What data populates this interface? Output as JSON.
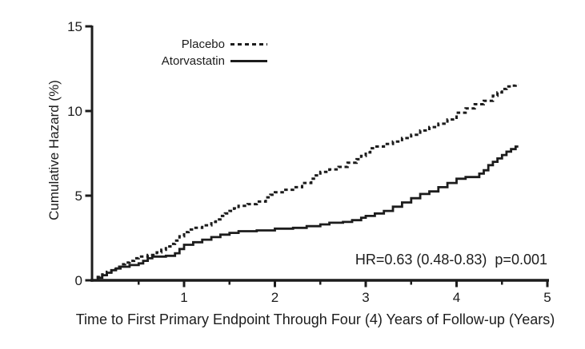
{
  "chart_data": {
    "type": "line",
    "subtype": "step-after",
    "title": "",
    "xlabel": "Time to First Primary Endpoint Through Four (4) Years of Follow-up (Years)",
    "ylabel": "Cumulative Hazard (%)",
    "xlim": [
      0,
      5
    ],
    "ylim": [
      0,
      15
    ],
    "x_ticks": [
      1,
      2,
      3,
      4,
      5
    ],
    "x_minor_ticks": [
      0.5,
      1.5,
      2.5,
      3.5,
      4.5
    ],
    "y_ticks": [
      0,
      5,
      10,
      15
    ],
    "grid": false,
    "legend_position": "top-left-inside",
    "annotation": "HR=0.63 (0.48-0.83)  p=0.001",
    "line_color": "#1c1c1c",
    "background_color": "#ffffff",
    "series": [
      {
        "name": "Placebo",
        "style": "dashed",
        "points": [
          [
            0,
            0
          ],
          [
            0.05,
            0.2
          ],
          [
            0.1,
            0.35
          ],
          [
            0.15,
            0.5
          ],
          [
            0.2,
            0.65
          ],
          [
            0.25,
            0.8
          ],
          [
            0.3,
            0.95
          ],
          [
            0.35,
            1.05
          ],
          [
            0.4,
            1.15
          ],
          [
            0.45,
            1.3
          ],
          [
            0.5,
            1.4
          ],
          [
            0.6,
            1.5
          ],
          [
            0.7,
            1.65
          ],
          [
            0.75,
            1.8
          ],
          [
            0.8,
            2.0
          ],
          [
            0.85,
            2.15
          ],
          [
            0.9,
            2.35
          ],
          [
            0.95,
            2.6
          ],
          [
            1.0,
            2.85
          ],
          [
            1.05,
            3.0
          ],
          [
            1.1,
            3.1
          ],
          [
            1.2,
            3.25
          ],
          [
            1.3,
            3.45
          ],
          [
            1.35,
            3.6
          ],
          [
            1.4,
            3.8
          ],
          [
            1.45,
            3.95
          ],
          [
            1.5,
            4.1
          ],
          [
            1.55,
            4.25
          ],
          [
            1.6,
            4.4
          ],
          [
            1.7,
            4.5
          ],
          [
            1.8,
            4.65
          ],
          [
            1.9,
            4.9
          ],
          [
            1.95,
            5.05
          ],
          [
            2.0,
            5.2
          ],
          [
            2.1,
            5.35
          ],
          [
            2.2,
            5.5
          ],
          [
            2.3,
            5.75
          ],
          [
            2.4,
            6.0
          ],
          [
            2.45,
            6.2
          ],
          [
            2.5,
            6.4
          ],
          [
            2.6,
            6.55
          ],
          [
            2.7,
            6.7
          ],
          [
            2.8,
            6.95
          ],
          [
            2.9,
            7.15
          ],
          [
            2.95,
            7.35
          ],
          [
            3.0,
            7.55
          ],
          [
            3.05,
            7.8
          ],
          [
            3.1,
            7.9
          ],
          [
            3.2,
            8.05
          ],
          [
            3.3,
            8.2
          ],
          [
            3.4,
            8.4
          ],
          [
            3.5,
            8.6
          ],
          [
            3.6,
            8.85
          ],
          [
            3.7,
            9.05
          ],
          [
            3.8,
            9.25
          ],
          [
            3.9,
            9.5
          ],
          [
            4.0,
            9.9
          ],
          [
            4.1,
            10.15
          ],
          [
            4.2,
            10.4
          ],
          [
            4.3,
            10.6
          ],
          [
            4.4,
            10.9
          ],
          [
            4.45,
            11.1
          ],
          [
            4.5,
            11.3
          ],
          [
            4.55,
            11.45
          ],
          [
            4.6,
            11.5
          ],
          [
            4.65,
            11.55
          ],
          [
            4.68,
            11.55
          ]
        ]
      },
      {
        "name": "Atorvastatin",
        "style": "solid",
        "points": [
          [
            0,
            0
          ],
          [
            0.05,
            0.15
          ],
          [
            0.1,
            0.3
          ],
          [
            0.15,
            0.45
          ],
          [
            0.2,
            0.6
          ],
          [
            0.25,
            0.7
          ],
          [
            0.3,
            0.8
          ],
          [
            0.4,
            0.9
          ],
          [
            0.5,
            1.0
          ],
          [
            0.55,
            1.15
          ],
          [
            0.6,
            1.3
          ],
          [
            0.65,
            1.4
          ],
          [
            0.8,
            1.45
          ],
          [
            0.9,
            1.6
          ],
          [
            0.95,
            1.85
          ],
          [
            1.0,
            2.1
          ],
          [
            1.1,
            2.25
          ],
          [
            1.2,
            2.4
          ],
          [
            1.3,
            2.55
          ],
          [
            1.4,
            2.7
          ],
          [
            1.5,
            2.8
          ],
          [
            1.6,
            2.9
          ],
          [
            1.8,
            2.95
          ],
          [
            2.0,
            3.05
          ],
          [
            2.2,
            3.1
          ],
          [
            2.35,
            3.2
          ],
          [
            2.5,
            3.3
          ],
          [
            2.6,
            3.4
          ],
          [
            2.75,
            3.45
          ],
          [
            2.85,
            3.55
          ],
          [
            2.95,
            3.7
          ],
          [
            3.0,
            3.8
          ],
          [
            3.1,
            3.95
          ],
          [
            3.2,
            4.1
          ],
          [
            3.3,
            4.35
          ],
          [
            3.4,
            4.6
          ],
          [
            3.5,
            4.85
          ],
          [
            3.6,
            5.1
          ],
          [
            3.7,
            5.25
          ],
          [
            3.8,
            5.5
          ],
          [
            3.9,
            5.75
          ],
          [
            4.0,
            6.0
          ],
          [
            4.1,
            6.1
          ],
          [
            4.25,
            6.3
          ],
          [
            4.3,
            6.5
          ],
          [
            4.35,
            6.8
          ],
          [
            4.4,
            7.0
          ],
          [
            4.45,
            7.2
          ],
          [
            4.5,
            7.4
          ],
          [
            4.55,
            7.6
          ],
          [
            4.6,
            7.75
          ],
          [
            4.65,
            7.9
          ],
          [
            4.68,
            7.9
          ]
        ]
      }
    ]
  }
}
